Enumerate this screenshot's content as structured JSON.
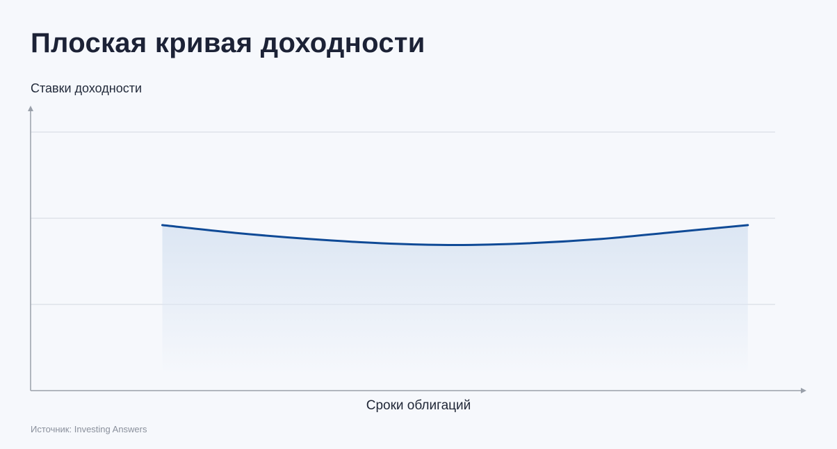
{
  "header": {
    "title": "Плоская кривая доходности"
  },
  "source": {
    "text": "Источник: Investing Answers"
  },
  "chart_data": {
    "type": "area",
    "title": "Плоская кривая доходности",
    "xlabel": "Сроки облигаций",
    "ylabel": "Ставки доходности",
    "x": [
      0,
      0.125,
      0.25,
      0.375,
      0.5,
      0.625,
      0.75,
      0.875,
      1
    ],
    "series": [
      {
        "values": [
          1.92,
          1.83,
          1.76,
          1.71,
          1.69,
          1.71,
          1.76,
          1.84,
          1.92
        ]
      }
    ],
    "xlim": [
      -0.225,
      1.1
    ],
    "ylim": [
      0,
      3
    ],
    "grid": true,
    "tick_labels": false,
    "colors": {
      "line": "#0f4a96",
      "fill_top": "#dce6f3",
      "grid": "#d3d7df",
      "axis": "#9aa0aa"
    }
  }
}
